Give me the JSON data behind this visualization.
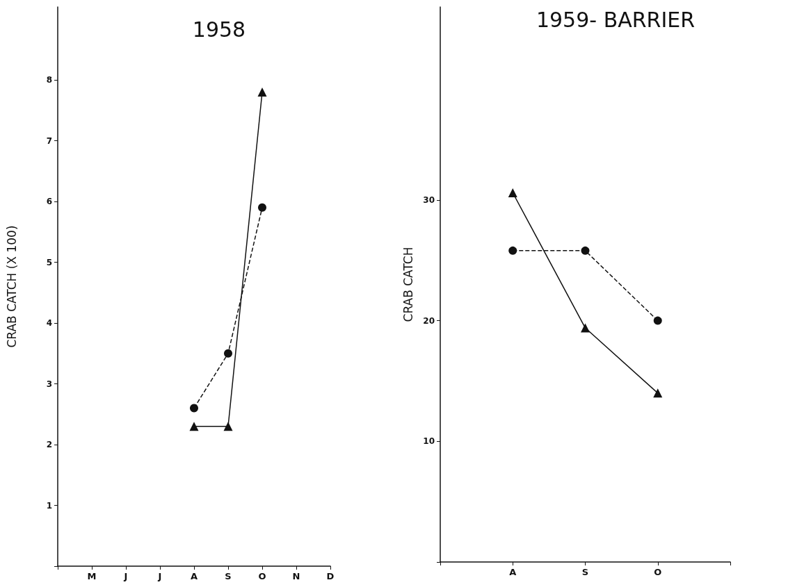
{
  "chart_data": [
    {
      "type": "line",
      "title": "1958",
      "ylabel": "CRAB CATCH (X 100)",
      "categories": [
        null,
        "M",
        "J",
        "J",
        "A",
        "S",
        "O",
        "N",
        "D"
      ],
      "ylim": [
        0,
        9.2
      ],
      "yticks": [
        {
          "value": 0,
          "label": null
        },
        1,
        2,
        3,
        4,
        5,
        6,
        7,
        8
      ],
      "series": [
        {
          "color": "#111111",
          "marker": "triangle",
          "line_style": "solid",
          "values": [
            null,
            null,
            null,
            null,
            2.3,
            2.3,
            7.8,
            null,
            null
          ]
        },
        {
          "color": "#111111",
          "marker": "circle",
          "line_style": "dashed",
          "values": [
            null,
            null,
            null,
            null,
            2.6,
            3.5,
            5.9,
            null,
            null
          ]
        }
      ]
    },
    {
      "type": "line",
      "title": "1959- BARRIER",
      "ylabel": "CRAB CATCH",
      "categories": [
        null,
        "A",
        "S",
        "O",
        null
      ],
      "ylim": [
        0,
        46
      ],
      "yticks": [
        {
          "value": 0,
          "label": null
        },
        10,
        20,
        30
      ],
      "series": [
        {
          "color": "#111111",
          "marker": "triangle",
          "line_style": "solid",
          "values": [
            null,
            30.6,
            19.4,
            14.0,
            null
          ]
        },
        {
          "color": "#111111",
          "marker": "circle",
          "line_style": "dashed",
          "values": [
            null,
            25.8,
            25.8,
            20.0,
            null
          ]
        }
      ]
    }
  ]
}
